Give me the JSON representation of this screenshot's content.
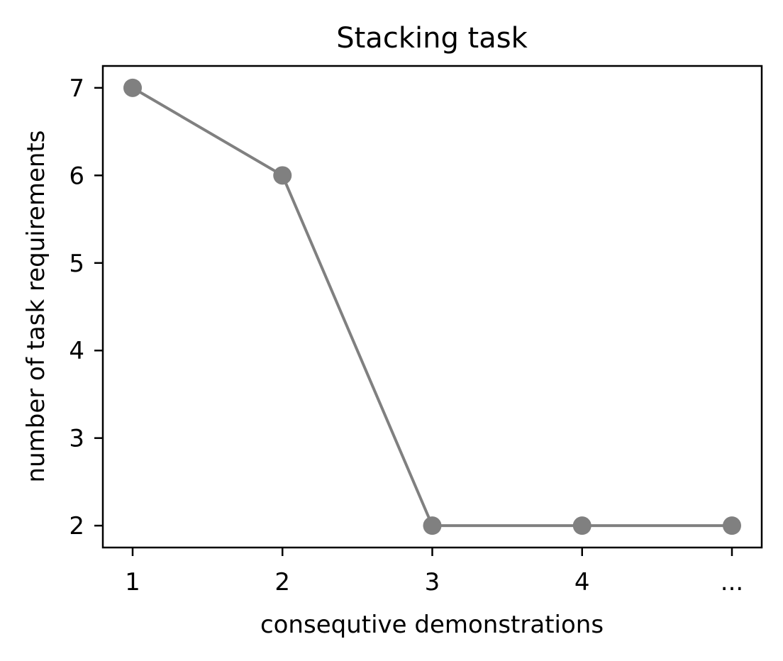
{
  "chart_data": {
    "type": "line",
    "title": "Stacking task",
    "xlabel": "consequtive demonstrations",
    "ylabel": "number of task requirements",
    "categories": [
      "1",
      "2",
      "3",
      "4",
      "..."
    ],
    "series": [
      {
        "values": [
          7,
          6,
          2,
          2,
          2
        ]
      }
    ],
    "yticks": [
      "2",
      "3",
      "4",
      "5",
      "6",
      "7"
    ],
    "ylim": [
      1.75,
      7.25
    ],
    "grid": false,
    "colors": {
      "line": "#808080",
      "marker": "#808080"
    }
  }
}
